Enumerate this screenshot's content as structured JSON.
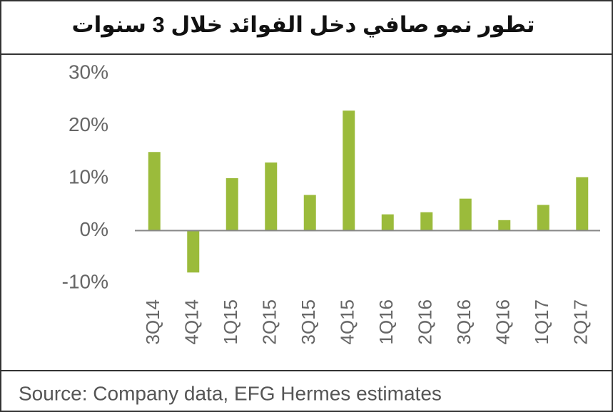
{
  "chart_data": {
    "type": "bar",
    "title": "تطور نمو صافي دخل الفوائد خلال 3 سنوات",
    "categories": [
      "3Q14",
      "4Q14",
      "1Q15",
      "2Q15",
      "3Q15",
      "4Q15",
      "1Q16",
      "2Q16",
      "3Q16",
      "4Q16",
      "1Q17",
      "2Q17"
    ],
    "values": [
      15,
      -8,
      10,
      13,
      6.8,
      22.9,
      3.1,
      3.5,
      6.1,
      2,
      4.9,
      10.2
    ],
    "color": "#9bbb3b",
    "ylim": [
      -10,
      30
    ],
    "yticks": [
      {
        "value": -10,
        "label": "-10%"
      },
      {
        "value": 0,
        "label": "0%"
      },
      {
        "value": 10,
        "label": "10%"
      },
      {
        "value": 20,
        "label": "20%"
      },
      {
        "value": 30,
        "label": "30%"
      }
    ],
    "grid": false,
    "source": "Source: Company data, EFG Hermes estimates"
  }
}
